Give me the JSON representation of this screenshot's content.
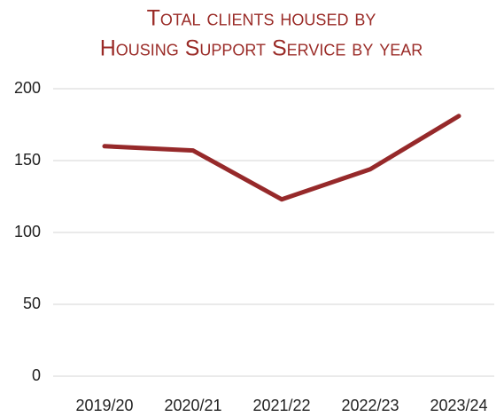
{
  "chart_data": {
    "type": "line",
    "title": [
      "Total clients housed by",
      "Housing Support Service by year"
    ],
    "categories": [
      "2019/20",
      "2020/21",
      "2021/22",
      "2022/23",
      "2023/24"
    ],
    "values": [
      160,
      157,
      123,
      144,
      181
    ],
    "color": "#96292a",
    "ylim": [
      0,
      200
    ],
    "yticks": [
      0,
      50,
      100,
      150,
      200
    ],
    "grid": true
  }
}
